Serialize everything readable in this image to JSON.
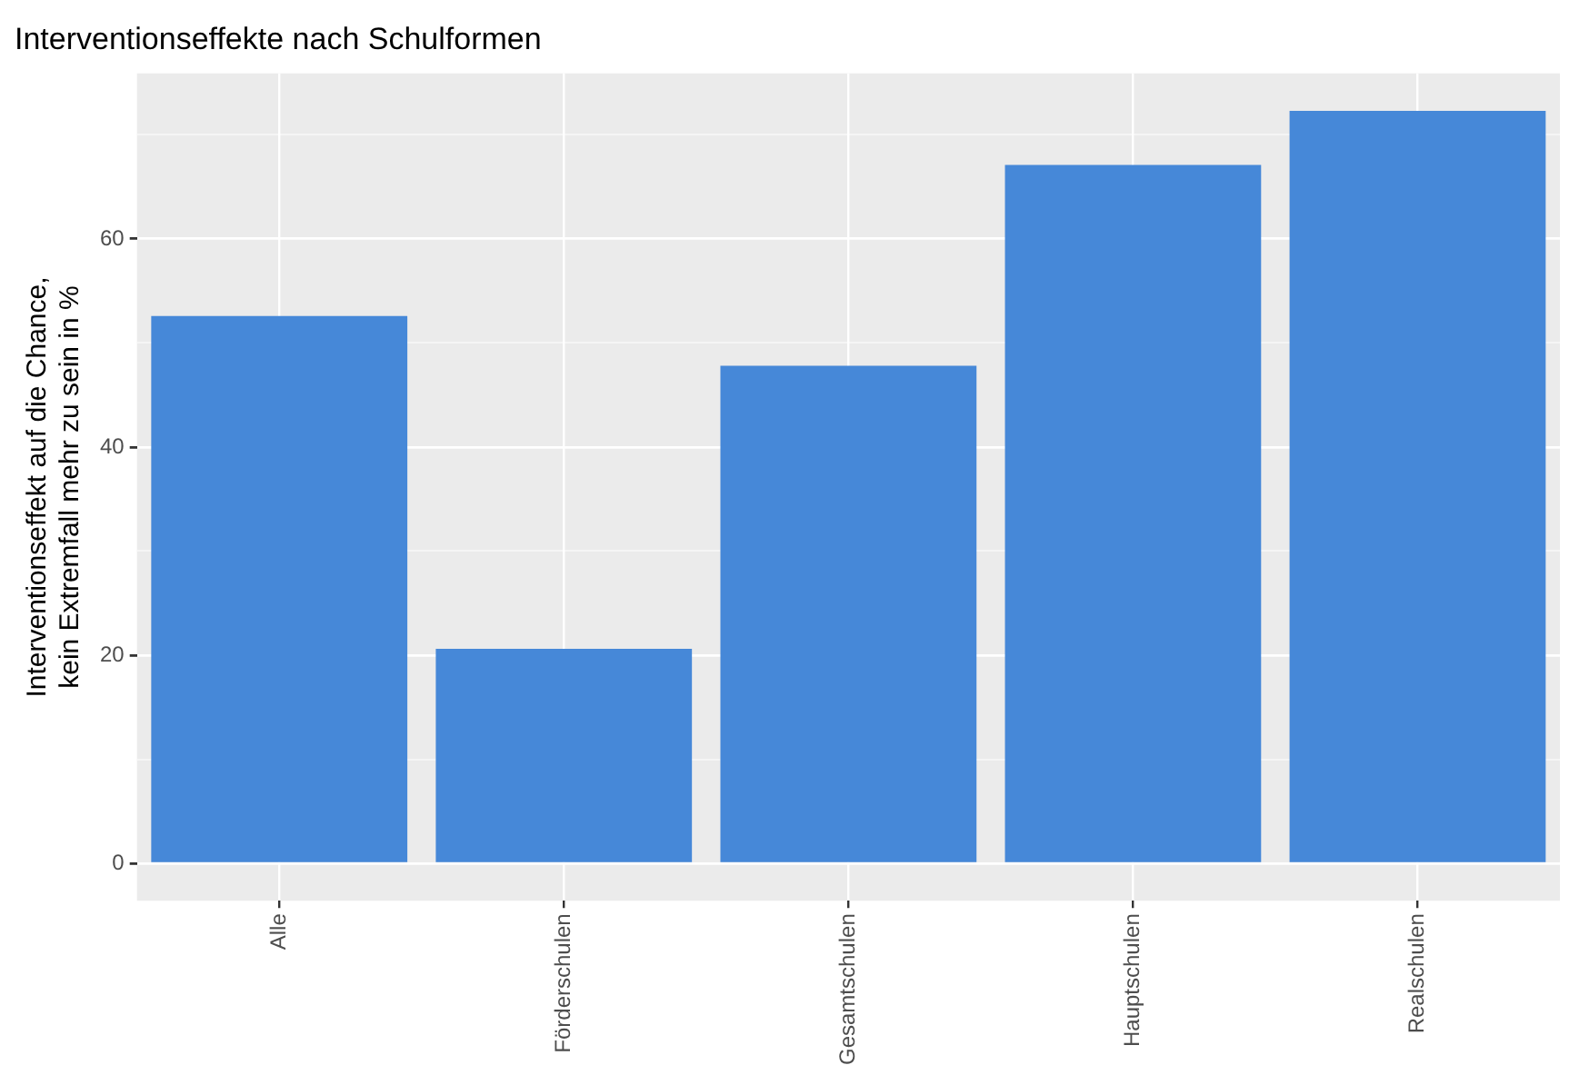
{
  "chart_data": {
    "type": "bar",
    "title": "Interventionseffekte nach Schulformen",
    "ylabel": "Interventionseffekt auf die Chance,\nkein Extremfall mehr zu sein in %",
    "categories": [
      "Alle",
      "Förderschulen",
      "Gesamtschulen",
      "Hauptschulen",
      "Realschulen"
    ],
    "values": [
      52.6,
      20.6,
      47.8,
      67.1,
      72.3
    ],
    "color": "#4688d8",
    "ylim": [
      -3.6,
      75.9
    ],
    "yticks": [
      0,
      {
        "value": 10,
        "label": null
      },
      20,
      {
        "value": 30,
        "label": null
      },
      40,
      {
        "value": 50,
        "label": null
      },
      60,
      {
        "value": 70,
        "label": null
      }
    ],
    "grid": true,
    "legend": false
  }
}
